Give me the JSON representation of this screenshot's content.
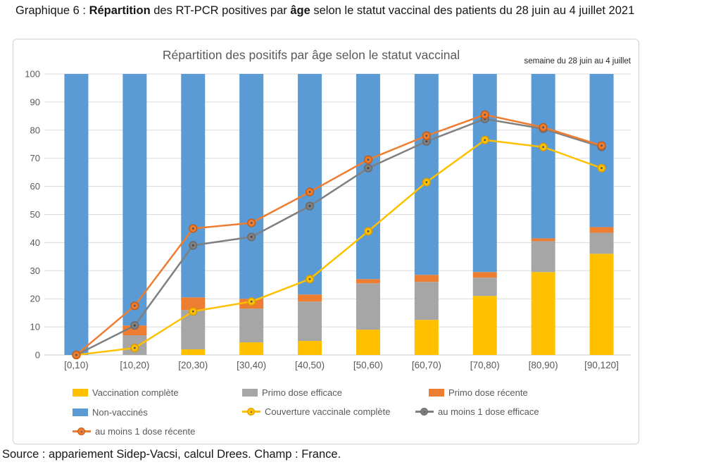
{
  "page": {
    "heading": {
      "parts": [
        {
          "text": "Graphique 6 : ",
          "bold": false
        },
        {
          "text": "Répartition",
          "bold": true
        },
        {
          "text": " des RT-PCR positives par ",
          "bold": false
        },
        {
          "text": "âge",
          "bold": true
        },
        {
          "text": " selon le statut vaccinal des patients du 28 juin au 4 juillet 2021",
          "bold": false
        }
      ]
    },
    "source_line": "Source : appariement Sidep-Vacsi, calcul Drees. Champ : France."
  },
  "chart": {
    "title": "Répartition des positifs par âge selon le statut vaccinal",
    "annotation": "semaine du 28 juin au 4 juillet"
  },
  "chart_data": {
    "type": "combo_stacked_bar_lines",
    "title": "Répartition des positifs par âge selon le statut vaccinal",
    "annotation": "semaine du 28 juin au 4 juillet",
    "categories": [
      "[0,10)",
      "[10,20)",
      "[20,30)",
      "[30,40)",
      "[40,50)",
      "[50,60)",
      "[60,70)",
      "[70,80)",
      "[80,90)",
      "[90,120]"
    ],
    "ylim": [
      0,
      100
    ],
    "yticks": [
      0,
      10,
      20,
      30,
      40,
      50,
      60,
      70,
      80,
      90,
      100
    ],
    "grid": true,
    "legend_position": "bottom",
    "bar_series": [
      {
        "name": "Vaccination complète",
        "color": "#FFC000",
        "values": [
          0,
          0,
          2,
          4.5,
          5,
          9,
          12.5,
          21,
          29.5,
          36
        ]
      },
      {
        "name": "Primo dose efficace",
        "color": "#A6A6A6",
        "values": [
          0,
          7,
          14,
          12,
          14,
          16.5,
          13.5,
          6.5,
          11,
          7.5
        ]
      },
      {
        "name": "Primo dose récente",
        "color": "#ED7D31",
        "values": [
          0,
          3.5,
          4.5,
          3.5,
          2.5,
          1.5,
          2.5,
          2,
          1,
          2
        ]
      },
      {
        "name": "Non-vaccinés",
        "color": "#5B9BD5",
        "values": [
          100,
          89.5,
          79.5,
          80,
          78.5,
          73,
          71.5,
          70.5,
          58.5,
          54.5
        ]
      }
    ],
    "line_series": [
      {
        "name": "au moins 1 dose efficace",
        "color": "#7F7F7F",
        "ring": "#6A6A6A",
        "dot": "#3F3F3F",
        "values": [
          0,
          10.5,
          39,
          42,
          53,
          66.5,
          76,
          84,
          80.5,
          74
        ]
      },
      {
        "name": "Couverture vaccinale complète",
        "color": "#FFC000",
        "ring": "#D69B00",
        "dot": "#44546A",
        "values": [
          0,
          2.5,
          15.5,
          19,
          27,
          44,
          61.5,
          76.5,
          74,
          66.5
        ]
      },
      {
        "name": "au moins 1 dose récente",
        "color": "#ED7D31",
        "ring": "#C55A11",
        "dot": "#44546A",
        "values": [
          0,
          17.5,
          45,
          47,
          58,
          69.5,
          78,
          85.5,
          81,
          74.5
        ]
      }
    ]
  },
  "legend": {
    "items": [
      {
        "label": "Vaccination complète",
        "type": "bar",
        "color": "#FFC000"
      },
      {
        "label": "Primo dose efficace",
        "type": "bar",
        "color": "#A6A6A6"
      },
      {
        "label": "Primo dose récente",
        "type": "bar",
        "color": "#ED7D31"
      },
      {
        "label": "Non-vaccinés",
        "type": "bar",
        "color": "#5B9BD5"
      },
      {
        "label": "Couverture vaccinale complète",
        "type": "line",
        "color": "#FFC000",
        "ring": "#D69B00"
      },
      {
        "label": "au moins 1 dose efficace",
        "type": "line",
        "color": "#7F7F7F",
        "ring": "#6A6A6A"
      },
      {
        "label": "au moins 1 dose récente",
        "type": "line",
        "color": "#ED7D31",
        "ring": "#C55A11"
      }
    ]
  },
  "colors": {
    "grid": "#DADADA",
    "axis_zero": "#C8C8C8",
    "axis_labels": "#595959",
    "chart_title": "#595959",
    "annotation": "#262626",
    "chart_border": "#D2D2D2"
  }
}
